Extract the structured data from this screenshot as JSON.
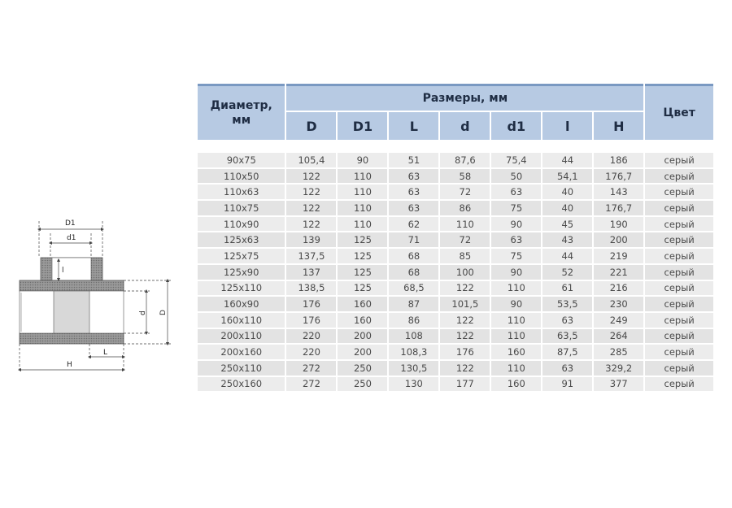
{
  "diagram": {
    "labels": {
      "D1": "D1",
      "d1": "d1",
      "l": "l",
      "d": "d",
      "D": "D",
      "H": "H",
      "L": "L"
    }
  },
  "table": {
    "header": {
      "diameter": "Диаметр,\nмм",
      "sizes": "Размеры, мм",
      "color": "Цвет",
      "columns": [
        "D",
        "D1",
        "L",
        "d",
        "d1",
        "l",
        "H"
      ]
    },
    "rows": [
      [
        "90x75",
        "105,4",
        "90",
        "51",
        "87,6",
        "75,4",
        "44",
        "186",
        "серый"
      ],
      [
        "110x50",
        "122",
        "110",
        "63",
        "58",
        "50",
        "54,1",
        "176,7",
        "серый"
      ],
      [
        "110x63",
        "122",
        "110",
        "63",
        "72",
        "63",
        "40",
        "143",
        "серый"
      ],
      [
        "110x75",
        "122",
        "110",
        "63",
        "86",
        "75",
        "40",
        "176,7",
        "серый"
      ],
      [
        "110x90",
        "122",
        "110",
        "62",
        "110",
        "90",
        "45",
        "190",
        "серый"
      ],
      [
        "125x63",
        "139",
        "125",
        "71",
        "72",
        "63",
        "43",
        "200",
        "серый"
      ],
      [
        "125x75",
        "137,5",
        "125",
        "68",
        "85",
        "75",
        "44",
        "219",
        "серый"
      ],
      [
        "125x90",
        "137",
        "125",
        "68",
        "100",
        "90",
        "52",
        "221",
        "серый"
      ],
      [
        "125x110",
        "138,5",
        "125",
        "68,5",
        "122",
        "110",
        "61",
        "216",
        "серый"
      ],
      [
        "160x90",
        "176",
        "160",
        "87",
        "101,5",
        "90",
        "53,5",
        "230",
        "серый"
      ],
      [
        "160x110",
        "176",
        "160",
        "86",
        "122",
        "110",
        "63",
        "249",
        "серый"
      ],
      [
        "200x110",
        "220",
        "200",
        "108",
        "122",
        "110",
        "63,5",
        "264",
        "серый"
      ],
      [
        "200x160",
        "220",
        "200",
        "108,3",
        "176",
        "160",
        "87,5",
        "285",
        "серый"
      ],
      [
        "250x110",
        "272",
        "250",
        "130,5",
        "122",
        "110",
        "63",
        "329,2",
        "серый"
      ],
      [
        "250x160",
        "272",
        "250",
        "130",
        "177",
        "160",
        "91",
        "377",
        "серый"
      ]
    ]
  },
  "colors": {
    "header_bg": "#b7cae3",
    "header_text": "#1f2d44",
    "row_bg": "#ececec",
    "accent_line": "#7a99c2"
  }
}
